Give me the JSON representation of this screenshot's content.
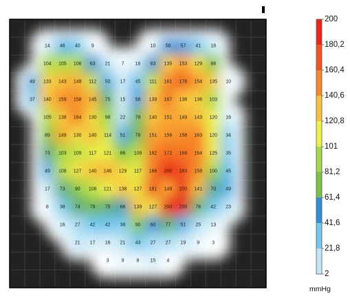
{
  "chart_data": {
    "type": "heatmap",
    "unit": "mmHg",
    "grid_cols": 17,
    "grid_rows": 15,
    "row_offset": 1,
    "rows": [
      [
        null,
        14,
        46,
        40,
        9,
        null,
        null,
        null,
        10,
        58,
        57,
        41,
        18,
        null,
        null
      ],
      [
        null,
        104,
        105,
        106,
        63,
        21,
        7,
        16,
        63,
        135,
        153,
        129,
        86,
        null,
        null
      ],
      [
        49,
        133,
        143,
        148,
        112,
        50,
        17,
        45,
        111,
        161,
        176,
        154,
        135,
        10,
        null
      ],
      [
        37,
        140,
        159,
        158,
        145,
        75,
        15,
        56,
        139,
        167,
        138,
        136,
        103,
        null,
        null
      ],
      [
        null,
        105,
        138,
        164,
        130,
        98,
        22,
        78,
        140,
        151,
        149,
        143,
        120,
        16,
        null
      ],
      [
        null,
        89,
        149,
        130,
        140,
        114,
        51,
        79,
        151,
        156,
        158,
        163,
        120,
        34,
        null
      ],
      [
        null,
        73,
        103,
        109,
        117,
        121,
        86,
        108,
        162,
        172,
        168,
        164,
        125,
        35,
        null
      ],
      [
        null,
        49,
        108,
        127,
        140,
        146,
        129,
        117,
        166,
        200,
        183,
        158,
        100,
        45,
        null
      ],
      [
        null,
        17,
        73,
        90,
        108,
        121,
        138,
        127,
        181,
        149,
        200,
        141,
        70,
        49,
        null
      ],
      [
        null,
        8,
        38,
        74,
        79,
        75,
        66,
        139,
        127,
        200,
        200,
        76,
        42,
        23,
        null
      ],
      [
        null,
        null,
        16,
        27,
        42,
        42,
        38,
        90,
        60,
        77,
        51,
        25,
        13,
        null,
        null
      ],
      [
        null,
        null,
        null,
        21,
        17,
        16,
        21,
        43,
        27,
        27,
        19,
        9,
        3,
        null,
        null
      ],
      [
        null,
        null,
        null,
        null,
        null,
        3,
        9,
        8,
        15,
        4,
        null,
        null,
        null,
        null,
        null
      ]
    ],
    "color_scale": {
      "labels": [
        "200",
        "180,2",
        "160,4",
        "140,6",
        "120,8",
        "101",
        "81,2",
        "61,4",
        "41,6",
        "21,8",
        "2"
      ],
      "colors": [
        "#e8241c",
        "#f2541e",
        "#f7882a",
        "#f7c23e",
        "#eef04a",
        "#a6d848",
        "#7cc04a",
        "#2e8ed8",
        "#72c8ee",
        "#c2e6f6",
        "#ffffff"
      ]
    }
  }
}
